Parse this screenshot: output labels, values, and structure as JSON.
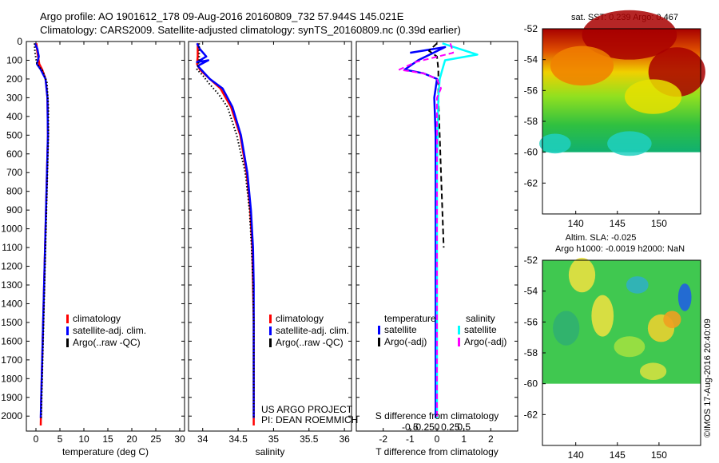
{
  "header": {
    "line1": "Argo profile: AO 1901612_178 09-Aug-2016 20160809_732 57.944S 145.021E",
    "line2": "Climatology: CARS2009. Satellite-adjusted climatology: synTS_20160809.nc (0.39d earlier)"
  },
  "colors": {
    "climatology": "#ff0000",
    "satellite": "#0000ff",
    "argo": "#000000",
    "sal_satellite": "#00ffff",
    "sal_argo": "#ff00ff"
  },
  "credit": "©IMOS 17-Aug-2016 20:40:09",
  "chart_data": [
    {
      "type": "line",
      "id": "temperature",
      "xlabel": "temperature (deg C)",
      "xlim": [
        -2,
        31
      ],
      "xticks": [
        0,
        5,
        10,
        15,
        20,
        25,
        30
      ],
      "xtick_labels": [
        "0",
        "5",
        "10",
        "15",
        "20",
        "25",
        "30"
      ],
      "ylim": [
        0,
        2080
      ],
      "yticks": [
        0,
        100,
        200,
        300,
        400,
        500,
        600,
        700,
        800,
        900,
        1000,
        1100,
        1200,
        1300,
        1400,
        1500,
        1600,
        1700,
        1800,
        1900,
        2000
      ],
      "ytick_labels": [
        "0",
        "100",
        "200",
        "300",
        "400",
        "500",
        "600",
        "700",
        "800",
        "900",
        "1000",
        "1100",
        "1200",
        "1300",
        "1400",
        "1500",
        "1600",
        "1700",
        "1800",
        "1900",
        "2000"
      ],
      "legend": [
        "climatology",
        "satellite-adj. clim.",
        "Argo(..raw -QC)"
      ],
      "series": [
        {
          "name": "climatology",
          "style": "solid",
          "color": "#ff0000",
          "points": [
            [
              0.1,
              10
            ],
            [
              0.3,
              60
            ],
            [
              0.7,
              120
            ],
            [
              1.3,
              150
            ],
            [
              2.0,
              200
            ],
            [
              2.4,
              300
            ],
            [
              2.5,
              500
            ],
            [
              2.3,
              700
            ],
            [
              2.1,
              900
            ],
            [
              1.9,
              1100
            ],
            [
              1.7,
              1300
            ],
            [
              1.5,
              1500
            ],
            [
              1.3,
              1700
            ],
            [
              1.1,
              1900
            ],
            [
              1.0,
              2050
            ]
          ]
        },
        {
          "name": "satellite-adj. clim.",
          "style": "solid",
          "color": "#0000ff",
          "points": [
            [
              -0.2,
              10
            ],
            [
              0.3,
              40
            ],
            [
              0.6,
              80
            ],
            [
              0.2,
              120
            ],
            [
              1.0,
              150
            ],
            [
              2.0,
              200
            ],
            [
              2.4,
              300
            ],
            [
              2.5,
              500
            ],
            [
              2.3,
              700
            ],
            [
              2.1,
              900
            ],
            [
              1.9,
              1100
            ],
            [
              1.7,
              1300
            ],
            [
              1.5,
              1500
            ],
            [
              1.3,
              1700
            ],
            [
              1.1,
              1900
            ],
            [
              1.0,
              2010
            ]
          ]
        },
        {
          "name": "Argo(..raw -QC)",
          "style": "dotted",
          "color": "#000000",
          "points": [
            [
              -0.3,
              10
            ],
            [
              -0.2,
              60
            ],
            [
              0.2,
              120
            ],
            [
              1.5,
              160
            ],
            [
              2.3,
              220
            ],
            [
              2.6,
              350
            ],
            [
              2.6,
              500
            ],
            [
              2.4,
              700
            ],
            [
              2.2,
              900
            ],
            [
              2.0,
              1100
            ],
            [
              1.8,
              1300
            ],
            [
              1.6,
              1500
            ],
            [
              1.4,
              1700
            ],
            [
              1.2,
              1900
            ],
            [
              1.1,
              2010
            ]
          ]
        }
      ]
    },
    {
      "type": "line",
      "id": "salinity",
      "xlabel": "salinity",
      "xlim": [
        33.8,
        36.1
      ],
      "xticks": [
        34,
        34.5,
        35,
        35.5,
        36
      ],
      "xtick_labels": [
        "34",
        "34.5",
        "35",
        "35.5",
        "36"
      ],
      "ylim": [
        0,
        2080
      ],
      "yticks": [
        0,
        100,
        200,
        300,
        400,
        500,
        600,
        700,
        800,
        900,
        1000,
        1100,
        1200,
        1300,
        1400,
        1500,
        1600,
        1700,
        1800,
        1900,
        2000
      ],
      "legend": [
        "climatology",
        "satellite-adj. clim.",
        "Argo(..raw -QC)"
      ],
      "annotation": [
        "US ARGO PROJECT",
        "PI: DEAN ROEMMICH"
      ],
      "series": [
        {
          "name": "climatology",
          "style": "solid",
          "color": "#ff0000",
          "points": [
            [
              33.93,
              10
            ],
            [
              33.93,
              80
            ],
            [
              33.92,
              120
            ],
            [
              33.96,
              150
            ],
            [
              34.1,
              200
            ],
            [
              34.25,
              250
            ],
            [
              34.4,
              350
            ],
            [
              34.53,
              500
            ],
            [
              34.62,
              700
            ],
            [
              34.67,
              900
            ],
            [
              34.7,
              1100
            ],
            [
              34.71,
              1300
            ],
            [
              34.72,
              1500
            ],
            [
              34.72,
              1700
            ],
            [
              34.72,
              1900
            ],
            [
              34.72,
              2050
            ]
          ]
        },
        {
          "name": "satellite-adj. clim.",
          "style": "solid",
          "color": "#0000ff",
          "points": [
            [
              33.92,
              10
            ],
            [
              33.96,
              40
            ],
            [
              34.05,
              80
            ],
            [
              33.92,
              110
            ],
            [
              34.08,
              100
            ],
            [
              33.93,
              130
            ],
            [
              34.1,
              200
            ],
            [
              34.28,
              250
            ],
            [
              34.42,
              350
            ],
            [
              34.54,
              500
            ],
            [
              34.63,
              700
            ],
            [
              34.68,
              900
            ],
            [
              34.71,
              1100
            ],
            [
              34.72,
              1300
            ],
            [
              34.72,
              1500
            ],
            [
              34.72,
              1700
            ],
            [
              34.72,
              1900
            ],
            [
              34.72,
              2010
            ]
          ]
        },
        {
          "name": "Argo(..raw -QC)",
          "style": "dotted",
          "color": "#000000",
          "points": [
            [
              33.95,
              10
            ],
            [
              33.95,
              100
            ],
            [
              33.92,
              150
            ],
            [
              34.0,
              180
            ],
            [
              34.08,
              220
            ],
            [
              34.22,
              280
            ],
            [
              34.35,
              350
            ],
            [
              34.48,
              500
            ],
            [
              34.6,
              700
            ],
            [
              34.66,
              900
            ],
            [
              34.69,
              1100
            ],
            [
              34.71,
              1300
            ],
            [
              34.72,
              1500
            ],
            [
              34.72,
              1700
            ],
            [
              34.72,
              1900
            ],
            [
              34.72,
              2010
            ]
          ]
        }
      ]
    },
    {
      "type": "line",
      "id": "difference",
      "xlabel": "T difference from climatology",
      "xlabel_top": "S difference from climatology",
      "xlim": [
        -3,
        3
      ],
      "xticks": [
        -2,
        -1,
        0,
        1,
        2
      ],
      "xtick_labels": [
        "-2",
        "-1",
        "0",
        "1",
        "2"
      ],
      "s_xticks": [
        -1,
        -0.5,
        0,
        0.5,
        1
      ],
      "s_xtick_labels": [
        "-0.5",
        "-0.25",
        "0",
        "0.25",
        "0.5"
      ],
      "ylim": [
        0,
        2080
      ],
      "yticks": [
        0,
        100,
        200,
        300,
        400,
        500,
        600,
        700,
        800,
        900,
        1000,
        1100,
        1200,
        1300,
        1400,
        1500,
        1600,
        1700,
        1800,
        1900,
        2000
      ],
      "legend_titles": [
        "temperature",
        "salinity"
      ],
      "legend": [
        "satellite",
        "Argo(-adj)",
        "satellite",
        "Argo(-adj)"
      ],
      "series": [
        {
          "name": "satellite",
          "group": "temperature",
          "style": "solid",
          "color": "#0000ff",
          "points": [
            [
              -1.0,
              60
            ],
            [
              0.3,
              30
            ],
            [
              -0.7,
              100
            ],
            [
              -1.2,
              150
            ],
            [
              -0.5,
              170
            ],
            [
              0.0,
              200
            ],
            [
              -0.1,
              300
            ],
            [
              -0.05,
              500
            ],
            [
              -0.05,
              700
            ],
            [
              -0.05,
              900
            ],
            [
              -0.05,
              1100
            ],
            [
              -0.05,
              1300
            ],
            [
              -0.05,
              1500
            ],
            [
              -0.05,
              1700
            ],
            [
              -0.05,
              1900
            ],
            [
              -0.05,
              2010
            ]
          ]
        },
        {
          "name": "Argo(-adj)",
          "group": "temperature",
          "style": "dashed",
          "color": "#000000",
          "points": [
            [
              0.0,
              10
            ],
            [
              -0.3,
              50
            ],
            [
              0.0,
              80
            ],
            [
              0.05,
              150
            ],
            [
              0.05,
              300
            ],
            [
              0.1,
              500
            ],
            [
              0.15,
              700
            ],
            [
              0.2,
              900
            ],
            [
              0.25,
              1100
            ]
          ]
        },
        {
          "name": "satellite",
          "group": "salinity",
          "style": "solid",
          "color": "#00ffff",
          "points": [
            [
              0.2,
              10
            ],
            [
              1.5,
              70
            ],
            [
              0.3,
              100
            ],
            [
              0.2,
              150
            ],
            [
              0.1,
              200
            ],
            [
              0.05,
              300
            ],
            [
              0.02,
              500
            ],
            [
              0.0,
              700
            ],
            [
              0.0,
              900
            ],
            [
              0.0,
              1100
            ],
            [
              0.0,
              1300
            ],
            [
              0.0,
              1500
            ],
            [
              0.0,
              1700
            ],
            [
              0.0,
              1900
            ],
            [
              0.0,
              2010
            ]
          ]
        },
        {
          "name": "Argo(-adj)",
          "group": "salinity",
          "style": "dashed",
          "color": "#ff00ff",
          "points": [
            [
              0.5,
              10
            ],
            [
              0.6,
              60
            ],
            [
              -0.8,
              110
            ],
            [
              -1.4,
              150
            ],
            [
              -0.5,
              170
            ],
            [
              0.0,
              200
            ],
            [
              0.15,
              250
            ],
            [
              0.0,
              300
            ],
            [
              0.0,
              500
            ],
            [
              0.0,
              700
            ],
            [
              0.0,
              900
            ],
            [
              0.0,
              1100
            ],
            [
              0.0,
              1300
            ],
            [
              0.0,
              1500
            ],
            [
              0.0,
              1700
            ],
            [
              0.0,
              1900
            ],
            [
              0.0,
              2010
            ]
          ]
        }
      ]
    },
    {
      "type": "heatmap",
      "id": "sst-map",
      "title": "sat. SST: 0.239 Argo: 0.467",
      "xlim": [
        136,
        155
      ],
      "ylim": [
        -64,
        -52
      ],
      "xticks": [
        140,
        145,
        150
      ],
      "xtick_labels": [
        "140",
        "145",
        "150"
      ],
      "yticks": [
        -52,
        -54,
        -56,
        -58,
        -60,
        -62
      ],
      "ytick_labels": [
        "-52",
        "-54",
        "-56",
        "-58",
        "-60",
        "-62"
      ],
      "data_lat_range": [
        -60,
        -52
      ]
    },
    {
      "type": "heatmap",
      "id": "sla-map",
      "title": "Altim. SLA: -0.025",
      "subtitle": "Argo h1000: -0.0019 h2000: NaN",
      "xlim": [
        136,
        155
      ],
      "ylim": [
        -64,
        -52
      ],
      "xticks": [
        140,
        145,
        150
      ],
      "xtick_labels": [
        "140",
        "145",
        "150"
      ],
      "yticks": [
        -52,
        -54,
        -56,
        -58,
        -60,
        -62
      ],
      "ytick_labels": [
        "-52",
        "-54",
        "-56",
        "-58",
        "-60",
        "-62"
      ],
      "data_lat_range": [
        -60,
        -52
      ]
    }
  ]
}
